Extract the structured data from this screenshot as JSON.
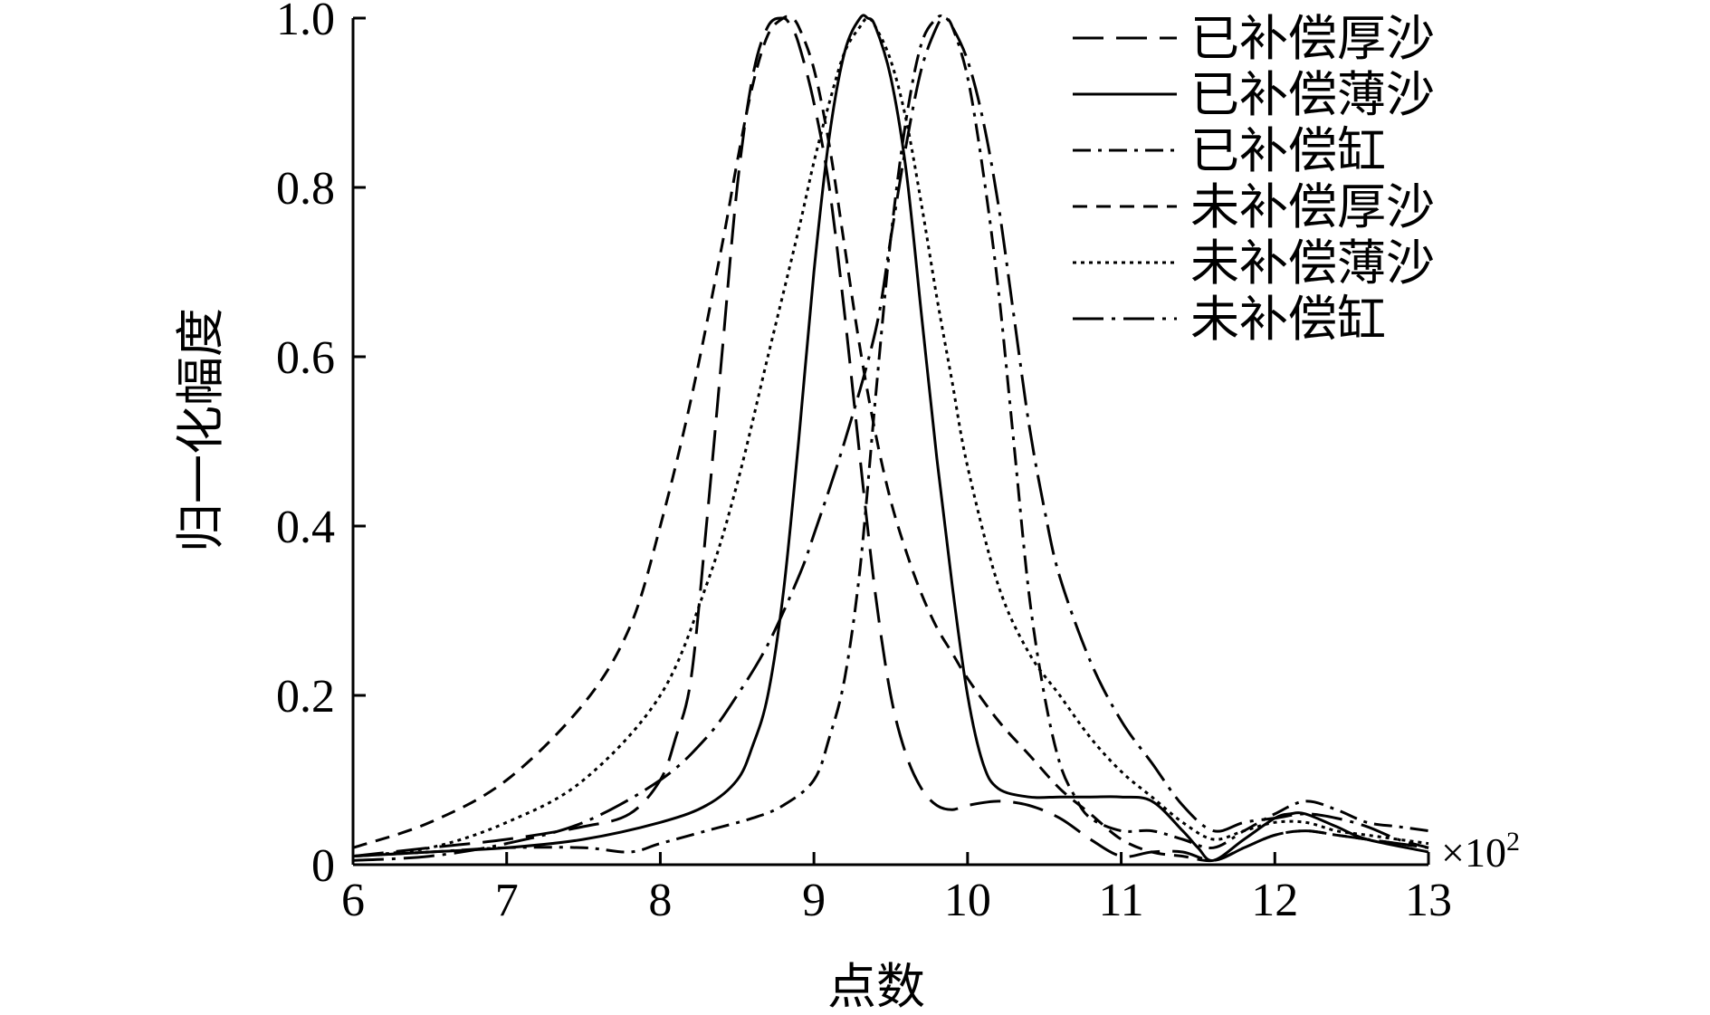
{
  "chart_data": {
    "type": "line",
    "title": "",
    "xlabel": "点数",
    "ylabel": "归一化幅度",
    "x_multiplier_label": "×10",
    "x_multiplier_exp": "2",
    "xlim": [
      6,
      13
    ],
    "ylim": [
      0,
      1.0
    ],
    "xticks": [
      6,
      7,
      8,
      9,
      10,
      11,
      12,
      13
    ],
    "xtick_labels": [
      "6",
      "7",
      "8",
      "9",
      "10",
      "11",
      "12",
      "13"
    ],
    "yticks": [
      0,
      0.2,
      0.4,
      0.6,
      0.8,
      1.0
    ],
    "ytick_labels": [
      "0",
      "0.2",
      "0.4",
      "0.6",
      "0.8",
      "1.0"
    ],
    "grid": false,
    "legend_position": "top-right",
    "series": [
      {
        "name": "已补偿厚沙",
        "dash": "long-dash",
        "x": [
          6.0,
          6.5,
          7.0,
          7.5,
          7.8,
          8.0,
          8.1,
          8.2,
          8.3,
          8.4,
          8.5,
          8.6,
          8.7,
          8.8,
          8.85,
          8.9,
          9.0,
          9.1,
          9.2,
          9.3,
          9.4,
          9.5,
          9.6,
          9.7,
          9.8,
          9.9,
          10.0,
          10.2,
          10.4,
          10.6,
          10.8,
          11.0,
          11.2,
          11.4,
          11.6,
          11.8,
          12.0,
          12.2,
          12.4,
          12.6,
          12.8,
          13.0
        ],
        "y": [
          0.01,
          0.02,
          0.03,
          0.045,
          0.06,
          0.1,
          0.15,
          0.22,
          0.4,
          0.6,
          0.8,
          0.93,
          0.99,
          1.0,
          0.99,
          0.97,
          0.9,
          0.8,
          0.65,
          0.48,
          0.32,
          0.2,
          0.13,
          0.09,
          0.07,
          0.065,
          0.07,
          0.075,
          0.07,
          0.055,
          0.03,
          0.01,
          0.015,
          0.015,
          0.005,
          0.02,
          0.035,
          0.04,
          0.035,
          0.03,
          0.025,
          0.02
        ]
      },
      {
        "name": "已补偿薄沙",
        "dash": "solid",
        "x": [
          6.0,
          6.5,
          7.0,
          7.5,
          8.0,
          8.3,
          8.5,
          8.6,
          8.7,
          8.8,
          8.9,
          9.0,
          9.1,
          9.2,
          9.3,
          9.35,
          9.4,
          9.5,
          9.6,
          9.7,
          9.8,
          9.9,
          10.0,
          10.1,
          10.2,
          10.4,
          10.6,
          10.8,
          11.0,
          11.2,
          11.4,
          11.5,
          11.6,
          11.8,
          12.0,
          12.1,
          12.2,
          12.4,
          12.6,
          13.0
        ],
        "y": [
          0.01,
          0.015,
          0.02,
          0.03,
          0.05,
          0.07,
          0.1,
          0.14,
          0.2,
          0.32,
          0.5,
          0.7,
          0.86,
          0.96,
          1.0,
          1.0,
          0.99,
          0.93,
          0.82,
          0.65,
          0.48,
          0.33,
          0.2,
          0.12,
          0.09,
          0.08,
          0.08,
          0.08,
          0.08,
          0.075,
          0.04,
          0.02,
          0.005,
          0.03,
          0.055,
          0.06,
          0.06,
          0.045,
          0.03,
          0.015
        ]
      },
      {
        "name": "已补偿缸",
        "dash": "dash-dot",
        "x": [
          6.0,
          6.5,
          7.0,
          7.5,
          7.8,
          8.0,
          8.3,
          8.6,
          8.8,
          9.0,
          9.1,
          9.2,
          9.3,
          9.4,
          9.5,
          9.6,
          9.7,
          9.8,
          9.85,
          9.9,
          10.0,
          10.1,
          10.2,
          10.3,
          10.4,
          10.5,
          10.6,
          10.7,
          10.8,
          11.0,
          11.2,
          11.4,
          11.6,
          11.8,
          12.0,
          12.2,
          12.4,
          12.6,
          12.8,
          13.0
        ],
        "y": [
          0.01,
          0.015,
          0.02,
          0.02,
          0.015,
          0.025,
          0.04,
          0.055,
          0.07,
          0.1,
          0.15,
          0.22,
          0.35,
          0.55,
          0.74,
          0.88,
          0.97,
          1.0,
          1.0,
          0.99,
          0.93,
          0.82,
          0.68,
          0.5,
          0.32,
          0.2,
          0.12,
          0.08,
          0.055,
          0.04,
          0.04,
          0.03,
          0.02,
          0.04,
          0.06,
          0.075,
          0.065,
          0.05,
          0.045,
          0.04
        ]
      },
      {
        "name": "未补偿厚沙",
        "dash": "short-dash",
        "x": [
          6.0,
          6.5,
          7.0,
          7.5,
          7.8,
          8.0,
          8.2,
          8.4,
          8.5,
          8.6,
          8.7,
          8.8,
          8.85,
          8.9,
          9.0,
          9.1,
          9.2,
          9.3,
          9.4,
          9.5,
          9.6,
          9.7,
          9.8,
          9.9,
          10.0,
          10.2,
          10.4,
          10.6,
          10.8,
          11.0,
          11.2,
          11.4,
          11.6,
          11.8,
          12.0,
          12.2,
          12.4,
          12.6,
          13.0
        ],
        "y": [
          0.02,
          0.05,
          0.1,
          0.19,
          0.28,
          0.4,
          0.55,
          0.73,
          0.83,
          0.92,
          0.98,
          1.0,
          1.0,
          0.99,
          0.94,
          0.85,
          0.73,
          0.61,
          0.51,
          0.43,
          0.37,
          0.32,
          0.28,
          0.25,
          0.22,
          0.17,
          0.13,
          0.09,
          0.06,
          0.03,
          0.015,
          0.01,
          0.005,
          0.02,
          0.035,
          0.04,
          0.035,
          0.03,
          0.02
        ]
      },
      {
        "name": "未补偿薄沙",
        "dash": "dotted",
        "x": [
          6.0,
          6.5,
          7.0,
          7.5,
          8.0,
          8.3,
          8.5,
          8.7,
          8.9,
          9.0,
          9.1,
          9.2,
          9.3,
          9.35,
          9.4,
          9.5,
          9.6,
          9.7,
          9.8,
          9.9,
          10.0,
          10.2,
          10.4,
          10.6,
          10.8,
          11.0,
          11.2,
          11.4,
          11.6,
          11.8,
          12.0,
          12.2,
          12.4,
          12.6,
          12.8,
          13.0
        ],
        "y": [
          0.01,
          0.02,
          0.05,
          0.1,
          0.2,
          0.33,
          0.45,
          0.6,
          0.75,
          0.83,
          0.9,
          0.96,
          0.99,
          1.0,
          0.99,
          0.95,
          0.88,
          0.78,
          0.67,
          0.57,
          0.47,
          0.33,
          0.25,
          0.2,
          0.15,
          0.11,
          0.08,
          0.05,
          0.03,
          0.04,
          0.05,
          0.05,
          0.04,
          0.035,
          0.03,
          0.025
        ]
      },
      {
        "name": "未补偿缸",
        "dash": "long-dash-dot",
        "x": [
          6.0,
          6.5,
          7.0,
          7.5,
          8.0,
          8.3,
          8.5,
          8.7,
          8.9,
          9.0,
          9.2,
          9.4,
          9.5,
          9.6,
          9.7,
          9.8,
          9.85,
          9.9,
          10.0,
          10.1,
          10.2,
          10.3,
          10.4,
          10.5,
          10.6,
          10.8,
          11.0,
          11.2,
          11.4,
          11.6,
          11.8,
          12.0,
          12.2,
          12.4,
          12.6,
          12.8,
          13.0
        ],
        "y": [
          0.005,
          0.01,
          0.025,
          0.05,
          0.1,
          0.15,
          0.2,
          0.26,
          0.34,
          0.39,
          0.5,
          0.63,
          0.74,
          0.85,
          0.94,
          0.99,
          1.0,
          0.99,
          0.95,
          0.88,
          0.78,
          0.65,
          0.52,
          0.42,
          0.34,
          0.24,
          0.17,
          0.12,
          0.07,
          0.04,
          0.05,
          0.055,
          0.06,
          0.055,
          0.045,
          0.03,
          0.02
        ]
      }
    ]
  }
}
